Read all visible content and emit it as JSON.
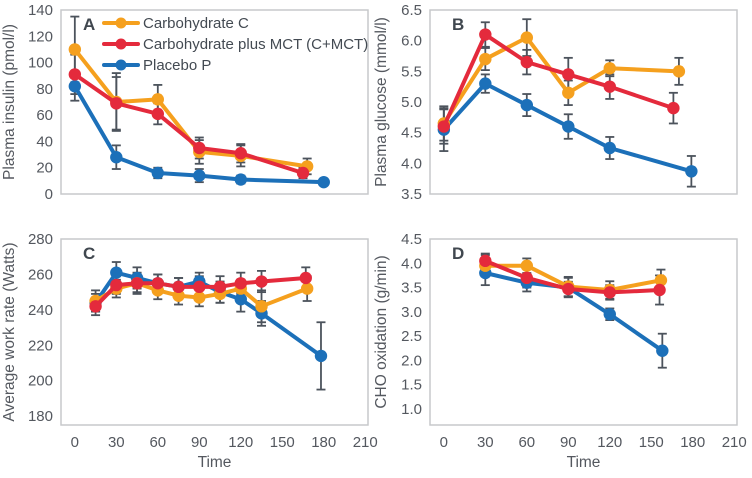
{
  "palette": {
    "orange": "#F5A01E",
    "red": "#E42A3C",
    "blue": "#1C70B9",
    "error_bar": "#4C535C",
    "frame": "#C7C9CB",
    "tick_text": "#54585F",
    "panel_letter": "#40474F"
  },
  "legend": {
    "position": "inside-top-left-of-panel-A",
    "items": [
      {
        "label": "Carbohydrate C",
        "color_key": "orange"
      },
      {
        "label": "Carbohydrate plus MCT (C+MCT)",
        "color_key": "red"
      },
      {
        "label": "Placebo P",
        "color_key": "blue"
      }
    ]
  },
  "chart_data": [
    {
      "panel": "A",
      "type": "line",
      "error_bars": true,
      "letter": "A",
      "ylabel": "Plasma insulin (pmol/l)",
      "xlabel": "",
      "ylim": [
        0,
        140
      ],
      "yticks": [
        "0",
        "20",
        "40",
        "60",
        "80",
        "100",
        "120",
        "140"
      ],
      "xticks": [
        "0",
        "30",
        "60",
        "90",
        "120",
        "150",
        "180",
        "210"
      ],
      "xticks_visible": false,
      "legend_here": true,
      "series": [
        {
          "key": "carbohydrate-c",
          "name": "Carbohydrate C",
          "color_key": "orange",
          "x": [
            0,
            30,
            60,
            90,
            120,
            168
          ],
          "y": [
            110,
            70,
            72,
            32,
            29,
            21
          ],
          "err": [
            25,
            22,
            11,
            9,
            8,
            6
          ]
        },
        {
          "key": "carbohydrate-mct",
          "name": "Carbohydrate plus MCT (C+MCT)",
          "color_key": "red",
          "x": [
            0,
            30,
            60,
            90,
            120,
            165
          ],
          "y": [
            91,
            69,
            61,
            35,
            31,
            16
          ],
          "err": [
            15,
            20,
            8,
            8,
            7,
            4
          ]
        },
        {
          "key": "placebo",
          "name": "Placebo P",
          "color_key": "blue",
          "x": [
            0,
            30,
            60,
            90,
            120,
            180
          ],
          "y": [
            82,
            28,
            16,
            14,
            11,
            9
          ],
          "err": [
            11,
            9,
            4,
            5,
            3,
            2
          ]
        }
      ]
    },
    {
      "panel": "B",
      "type": "line",
      "error_bars": true,
      "letter": "B",
      "ylabel": "Plasma glucose (mmol/l)",
      "xlabel": "",
      "ylim": [
        3.5,
        6.5
      ],
      "yticks": [
        "3.5",
        "4.0",
        "4.5",
        "5.0",
        "5.5",
        "6.0",
        "6.5"
      ],
      "xticks": [
        "0",
        "30",
        "60",
        "90",
        "120",
        "150",
        "180",
        "210"
      ],
      "xticks_visible": false,
      "legend_here": false,
      "series": [
        {
          "key": "carbohydrate-c",
          "name": "Carbohydrate C",
          "color_key": "orange",
          "x": [
            0,
            30,
            60,
            90,
            120,
            170
          ],
          "y": [
            4.65,
            5.7,
            6.05,
            5.15,
            5.55,
            5.5
          ],
          "err": [
            0.28,
            0.18,
            0.3,
            0.2,
            0.13,
            0.22
          ]
        },
        {
          "key": "carbohydrate-mct",
          "name": "Carbohydrate plus MCT (C+MCT)",
          "color_key": "red",
          "x": [
            0,
            30,
            60,
            90,
            120,
            166
          ],
          "y": [
            4.6,
            6.1,
            5.65,
            5.45,
            5.25,
            4.9
          ],
          "err": [
            0.28,
            0.2,
            0.2,
            0.27,
            0.2,
            0.25
          ]
        },
        {
          "key": "placebo",
          "name": "Placebo P",
          "color_key": "blue",
          "x": [
            0,
            30,
            60,
            90,
            120,
            179
          ],
          "y": [
            4.55,
            5.3,
            4.95,
            4.6,
            4.25,
            3.87
          ],
          "err": [
            0.35,
            0.15,
            0.18,
            0.2,
            0.18,
            0.25
          ]
        }
      ]
    },
    {
      "panel": "C",
      "type": "line",
      "error_bars": true,
      "letter": "C",
      "ylabel": "Average work rate (Watts)",
      "xlabel": "Time",
      "ylim": [
        175,
        280
      ],
      "yticks": [
        "180",
        "200",
        "220",
        "240",
        "260",
        "280"
      ],
      "xticks": [
        "0",
        "30",
        "60",
        "90",
        "120",
        "150",
        "180",
        "210"
      ],
      "xticks_visible": true,
      "legend_here": false,
      "series": [
        {
          "key": "carbohydrate-c",
          "name": "Carbohydrate C",
          "color_key": "orange",
          "x": [
            15,
            30,
            45,
            60,
            75,
            90,
            105,
            120,
            135,
            168
          ],
          "y": [
            245,
            252,
            255,
            251,
            248,
            247,
            249,
            252,
            242,
            252
          ],
          "err": [
            6,
            5,
            5,
            5,
            5,
            5,
            5,
            5,
            9,
            7
          ]
        },
        {
          "key": "carbohydrate-mct",
          "name": "Carbohydrate plus MCT (C+MCT)",
          "color_key": "red",
          "x": [
            15,
            30,
            45,
            60,
            75,
            90,
            105,
            120,
            135,
            167
          ],
          "y": [
            242,
            254,
            255,
            255,
            253,
            253,
            253,
            255,
            256,
            258
          ],
          "err": [
            5,
            5,
            6,
            5,
            5,
            6,
            6,
            6,
            6,
            6
          ]
        },
        {
          "key": "placebo",
          "name": "Placebo P",
          "color_key": "blue",
          "x": [
            15,
            30,
            45,
            60,
            75,
            90,
            105,
            120,
            135,
            178
          ],
          "y": [
            244,
            261,
            258,
            255,
            253,
            256,
            250,
            246,
            238,
            214
          ],
          "err": [
            5,
            6,
            6,
            5,
            5,
            5,
            6,
            7,
            7,
            19
          ]
        }
      ]
    },
    {
      "panel": "D",
      "type": "line",
      "error_bars": true,
      "letter": "D",
      "ylabel": "CHO oxidation (g/min)",
      "xlabel": "Time",
      "ylim": [
        0.67,
        4.5
      ],
      "yticks": [
        "1.0",
        "1.5",
        "2.0",
        "2.5",
        "3.0",
        "3.5",
        "4.0",
        "4.5"
      ],
      "xticks": [
        "0",
        "30",
        "60",
        "90",
        "120",
        "150",
        "180",
        "210"
      ],
      "xticks_visible": true,
      "legend_here": false,
      "series": [
        {
          "key": "carbohydrate-c",
          "name": "Carbohydrate C",
          "color_key": "orange",
          "x": [
            30,
            60,
            90,
            120,
            157
          ],
          "y": [
            3.95,
            3.95,
            3.52,
            3.45,
            3.65
          ],
          "err": [
            0.22,
            0.15,
            0.2,
            0.18,
            0.22
          ]
        },
        {
          "key": "carbohydrate-mct",
          "name": "Carbohydrate plus MCT (C+MCT)",
          "color_key": "red",
          "x": [
            30,
            60,
            90,
            120,
            156
          ],
          "y": [
            4.05,
            3.7,
            3.47,
            3.4,
            3.45
          ],
          "err": [
            0.15,
            0.2,
            0.15,
            0.15,
            0.3
          ]
        },
        {
          "key": "placebo",
          "name": "Placebo P",
          "color_key": "blue",
          "x": [
            30,
            60,
            90,
            120,
            158
          ],
          "y": [
            3.8,
            3.6,
            3.5,
            2.95,
            2.2
          ],
          "err": [
            0.25,
            0.18,
            0.2,
            0.12,
            0.35
          ]
        }
      ]
    }
  ]
}
